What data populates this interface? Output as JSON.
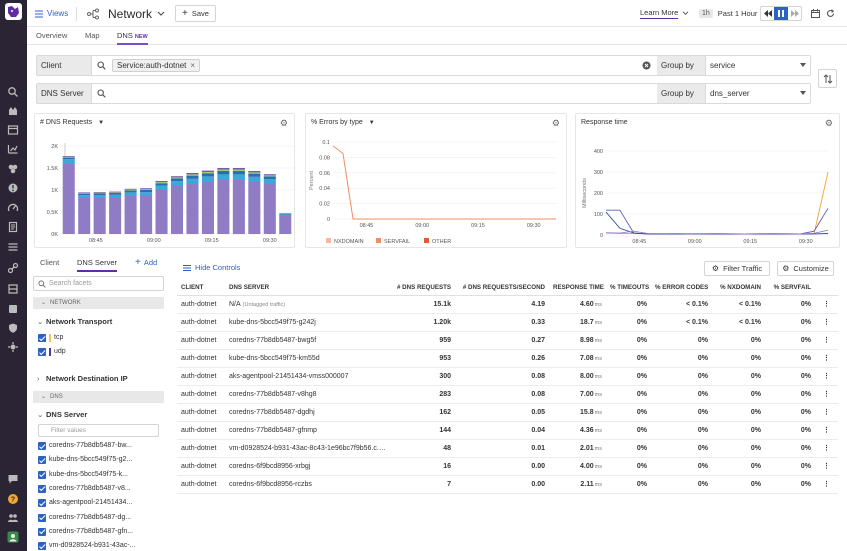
{
  "topbar": {
    "views_label": "Views",
    "title": "Network",
    "save_label": "Save",
    "learn_more_label": "Learn More",
    "time_badge": "1h",
    "time_range": "Past 1 Hour"
  },
  "tabs": [
    {
      "label": "Overview"
    },
    {
      "label": "Map"
    },
    {
      "label": "DNS",
      "badge": "NEW"
    }
  ],
  "query": {
    "client_label": "Client",
    "client_tag": "Service:auth-dotnet",
    "client_group_label": "Group by",
    "client_group_value": "service",
    "server_label": "DNS Server",
    "server_group_label": "Group by",
    "server_group_value": "dns_server"
  },
  "panels": {
    "requests_title": "# DNS Requests",
    "errors_title": "% Errors by type",
    "response_title": "Response time"
  },
  "chart_data": [
    {
      "type": "bar",
      "title": "# DNS Requests",
      "y_ticks": [
        "0K",
        "0.5K",
        "1K",
        "1.5K",
        "2K"
      ],
      "x_ticks": [
        "08:45",
        "09:00",
        "09:15",
        "09:30"
      ],
      "ylim": [
        0,
        2200
      ],
      "series": [
        {
          "name": "coredns",
          "color": "#8f7cc4",
          "values": [
            1750,
            900,
            900,
            900,
            950,
            950,
            1100,
            1200,
            1250,
            1300,
            1350,
            1350,
            1300,
            1250,
            450
          ]
        },
        {
          "name": "kube-dns",
          "color": "#3aa8d8",
          "values": [
            120,
            70,
            75,
            80,
            90,
            95,
            110,
            120,
            130,
            140,
            140,
            140,
            130,
            120,
            40
          ]
        },
        {
          "name": "aks-agentpool",
          "color": "#2a6fb0",
          "values": [
            40,
            40,
            45,
            45,
            50,
            55,
            60,
            70,
            80,
            80,
            90,
            90,
            80,
            70,
            20
          ]
        },
        {
          "name": "other",
          "color": "#9ccf6f",
          "values": [
            20,
            15,
            15,
            15,
            20,
            20,
            25,
            25,
            30,
            30,
            30,
            30,
            30,
            25,
            5
          ]
        },
        {
          "name": "vm",
          "color": "#7a5aa8",
          "values": [
            20,
            15,
            15,
            20,
            20,
            25,
            30,
            30,
            35,
            35,
            40,
            40,
            35,
            30,
            5
          ]
        }
      ]
    },
    {
      "type": "line",
      "title": "% Errors by type",
      "y_ticks": [
        "0",
        "0.02",
        "0.04",
        "0.06",
        "0.08",
        "0.1"
      ],
      "x_ticks": [
        "08:45",
        "09:00",
        "09:15",
        "09:30"
      ],
      "ylabel": "Percent",
      "ylim": [
        0,
        0.1
      ],
      "series": [
        {
          "name": "NXDOMAIN",
          "color": "#f6b9a0"
        },
        {
          "name": "SERVFAIL",
          "color": "#f28c61",
          "values": [
            0.095,
            0.085,
            0.0,
            0.0,
            0.0,
            0.0,
            0.0,
            0.0,
            0.0,
            0.0,
            0.0,
            0.0,
            0.0,
            0.0
          ]
        },
        {
          "name": "OTHER",
          "color": "#e8582f"
        }
      ]
    },
    {
      "type": "line",
      "title": "Response time",
      "y_ticks": [
        "0",
        "100",
        "200",
        "300",
        "400"
      ],
      "x_ticks": [
        "08:45",
        "09:00",
        "09:15",
        "09:30"
      ],
      "ylabel": "Milliseconds",
      "ylim": [
        0,
        440
      ],
      "series": [
        {
          "name": "s1",
          "color": "#f0a830",
          "values": [
            10,
            8,
            8,
            7,
            7,
            7,
            8,
            7,
            7,
            6,
            6,
            7,
            6,
            7,
            6,
            8,
            330
          ]
        },
        {
          "name": "s2",
          "color": "#5b5bbf",
          "values": [
            130,
            130,
            10,
            6,
            5,
            6,
            5,
            6,
            5,
            5,
            6,
            5,
            5,
            6,
            5,
            20,
            140
          ]
        },
        {
          "name": "s3",
          "color": "#2f4f9f",
          "values": [
            120,
            35,
            10,
            6,
            5,
            5,
            6,
            5,
            5,
            6,
            5,
            5,
            5,
            6,
            5,
            6,
            8
          ]
        },
        {
          "name": "s4",
          "color": "#9c7bd0",
          "values": [
            12,
            10,
            20,
            8,
            7,
            8,
            6,
            7,
            8,
            7,
            6,
            7,
            8,
            7,
            6,
            9,
            25
          ]
        }
      ]
    }
  ],
  "facets": {
    "tab_client": "Client",
    "tab_dns_server": "DNS Server",
    "add_label": "Add",
    "search_placeholder": "Search facets",
    "sec_network": "NETWORK",
    "network_transport": "Network Transport",
    "transport_values": [
      {
        "label": "tcp",
        "color": "#f2c24a"
      },
      {
        "label": "udp",
        "color": "#4a3aa8"
      }
    ],
    "network_dest_ip": "Network Destination IP",
    "sec_dns": "DNS",
    "dns_server": "DNS Server",
    "filter_placeholder": "Filter values",
    "server_values": [
      "coredns-77b8db5487-bw...",
      "kube-dns-5bcc549f75-g2...",
      "kube-dns-5bcc549f75-k...",
      "coredns-77b8db5487-v8...",
      "aks-agentpool-21451434...",
      "coredns-77b8db5487-dg...",
      "coredns-77b8db5487-gfn...",
      "vm-d0928524-b931-43ac-..."
    ]
  },
  "table_toolbar": {
    "hide_controls": "Hide Controls",
    "filter_traffic": "Filter Traffic",
    "customize": "Customize"
  },
  "table": {
    "headers": [
      "CLIENT",
      "DNS SERVER",
      "# DNS REQUESTS",
      "# DNS REQUESTS/SECOND",
      "RESPONSE TIME",
      "% TIMEOUTS",
      "% ERROR CODES",
      "% NXDOMAIN",
      "% SERVFAIL"
    ],
    "ms_unit": "ms",
    "rows": [
      {
        "client": "auth-dotnet",
        "server": "N/A",
        "server_note": "(Untagged traffic)",
        "requests": "15.1k",
        "rps": "4.19",
        "rt": "4.60",
        "timeouts": "0%",
        "errors": "< 0.1%",
        "nxdomain": "< 0.1%",
        "servfail": "0%"
      },
      {
        "client": "auth-dotnet",
        "server": "kube-dns-5bcc549f75-g242j",
        "server_note": "",
        "requests": "1.20k",
        "rps": "0.33",
        "rt": "18.7",
        "timeouts": "0%",
        "errors": "< 0.1%",
        "nxdomain": "< 0.1%",
        "servfail": "0%"
      },
      {
        "client": "auth-dotnet",
        "server": "coredns-77b8db5487-bwg5f",
        "server_note": "",
        "requests": "959",
        "rps": "0.27",
        "rt": "8.98",
        "timeouts": "0%",
        "errors": "0%",
        "nxdomain": "0%",
        "servfail": "0%"
      },
      {
        "client": "auth-dotnet",
        "server": "kube-dns-5bcc549f75-km55d",
        "server_note": "",
        "requests": "953",
        "rps": "0.26",
        "rt": "7.08",
        "timeouts": "0%",
        "errors": "0%",
        "nxdomain": "0%",
        "servfail": "0%"
      },
      {
        "client": "auth-dotnet",
        "server": "aks-agentpool-21451434-vmss000007",
        "server_note": "",
        "requests": "300",
        "rps": "0.08",
        "rt": "8.00",
        "timeouts": "0%",
        "errors": "0%",
        "nxdomain": "0%",
        "servfail": "0%"
      },
      {
        "client": "auth-dotnet",
        "server": "coredns-77b8db5487-v8hg8",
        "server_note": "",
        "requests": "283",
        "rps": "0.08",
        "rt": "7.00",
        "timeouts": "0%",
        "errors": "0%",
        "nxdomain": "0%",
        "servfail": "0%"
      },
      {
        "client": "auth-dotnet",
        "server": "coredns-77b8db5487-dgdhj",
        "server_note": "",
        "requests": "162",
        "rps": "0.05",
        "rt": "15.8",
        "timeouts": "0%",
        "errors": "0%",
        "nxdomain": "0%",
        "servfail": "0%"
      },
      {
        "client": "auth-dotnet",
        "server": "coredns-77b8db5487-gfnmp",
        "server_note": "",
        "requests": "144",
        "rps": "0.04",
        "rt": "4.36",
        "timeouts": "0%",
        "errors": "0%",
        "nxdomain": "0%",
        "servfail": "0%"
      },
      {
        "client": "auth-dotnet",
        "server": "vm-d0928524-b931-43ac-8c43-1e96bc7f9b56.c.d...",
        "server_note": "",
        "requests": "48",
        "rps": "0.01",
        "rt": "2.01",
        "timeouts": "0%",
        "errors": "0%",
        "nxdomain": "0%",
        "servfail": "0%"
      },
      {
        "client": "auth-dotnet",
        "server": "coredns-6f9bcd8956-xrbgj",
        "server_note": "",
        "requests": "16",
        "rps": "0.00",
        "rt": "4.00",
        "timeouts": "0%",
        "errors": "0%",
        "nxdomain": "0%",
        "servfail": "0%"
      },
      {
        "client": "auth-dotnet",
        "server": "coredns-6f9bcd8956-rczbs",
        "server_note": "",
        "requests": "7",
        "rps": "0.00",
        "rt": "2.11",
        "timeouts": "0%",
        "errors": "0%",
        "nxdomain": "0%",
        "servfail": "0%"
      }
    ]
  },
  "colors": {
    "accent": "#632ca6",
    "nav_bg": "#2b2434",
    "link": "#2c63c2"
  }
}
